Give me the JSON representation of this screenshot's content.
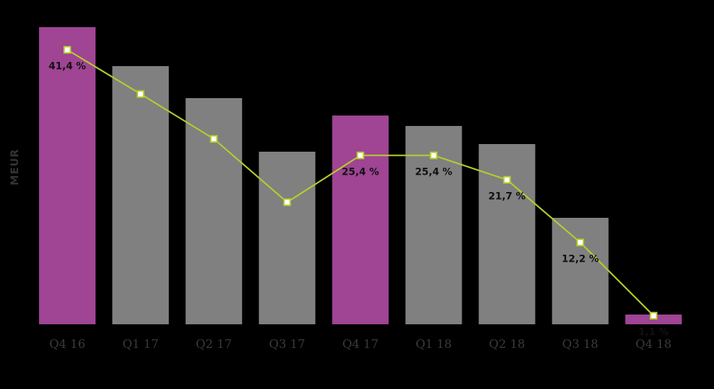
{
  "chart_data": {
    "type": "bar",
    "title": "",
    "xlabel": "",
    "ylabel": "MEUR",
    "categories": [
      "Q4 16",
      "Q1 17",
      "Q2 17",
      "Q3 17",
      "Q4 17",
      "Q1 18",
      "Q2 18",
      "Q3 18",
      "Q4 18"
    ],
    "series": [
      {
        "type": "bar",
        "values": [
          427,
          371,
          325,
          248,
          300,
          285,
          259,
          153,
          14
        ]
      },
      {
        "type": "line",
        "values": [
          41.4,
          34.7,
          27.9,
          18.3,
          25.4,
          25.4,
          21.7,
          12.2,
          1.1
        ]
      }
    ],
    "data_labels": [
      "41,4 %",
      "",
      "",
      "",
      "25,4 %",
      "25,4 %",
      "21,7 %",
      "12,2 %",
      "1,1 %"
    ],
    "bar_ylim": [
      0,
      427
    ],
    "line_ylim": [
      -0.2,
      46
    ],
    "grid": false,
    "colors": {
      "background": "#000000",
      "highlight_bar": "#a04494",
      "regular_bar": "#808080",
      "line": "#b5cb2e",
      "marker_fill": "#ffffff",
      "tick_label": "#3a3a3a",
      "data_label": "#111111"
    },
    "highlighted_categories": [
      "Q4 16",
      "Q4 17",
      "Q4 18"
    ]
  }
}
